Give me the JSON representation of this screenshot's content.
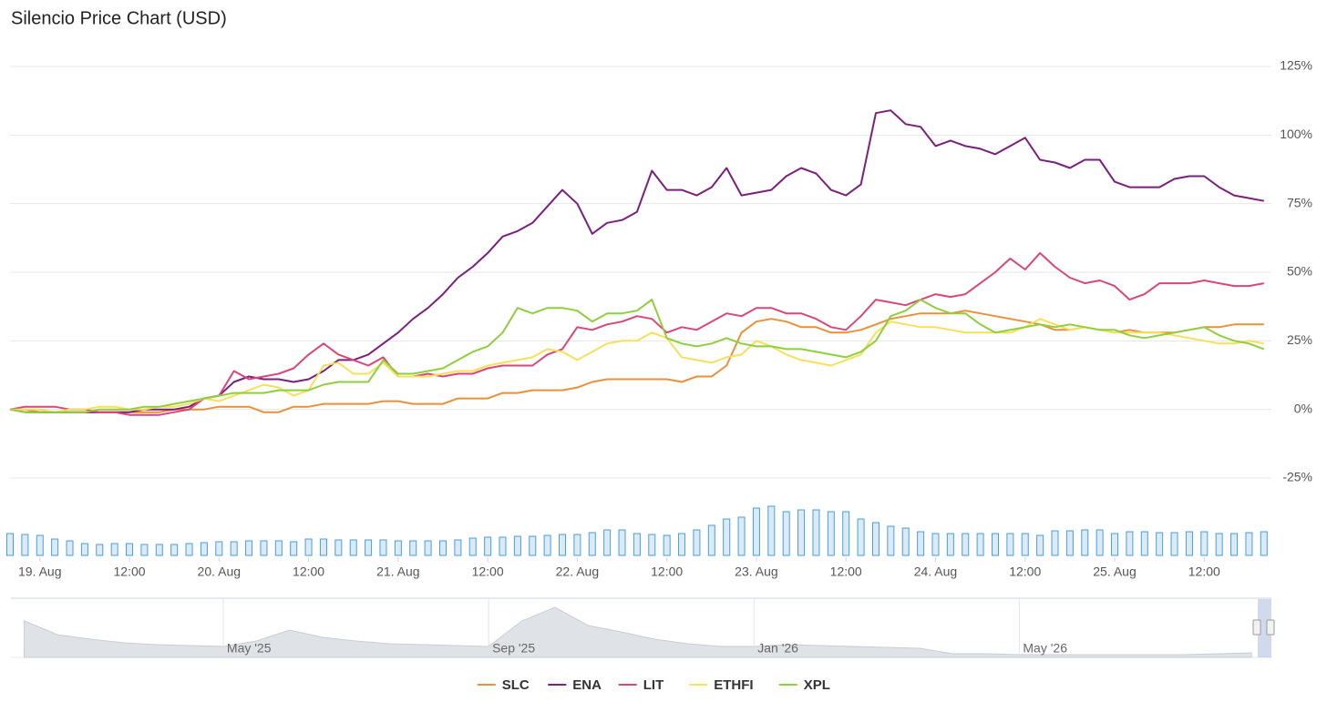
{
  "chart_data": [
    {
      "type": "line",
      "title": "Silencio Price Chart (USD)",
      "x": [
        -4,
        -2,
        0,
        2,
        4,
        6,
        8,
        10,
        12,
        14,
        16,
        18,
        20,
        22,
        24,
        26,
        28,
        30,
        32,
        34,
        36,
        38,
        40,
        42,
        44,
        46,
        48,
        50,
        52,
        54,
        56,
        58,
        60,
        62,
        64,
        66,
        68,
        70,
        72,
        74,
        76,
        78,
        80,
        82,
        84,
        86,
        88,
        90,
        92,
        94,
        96,
        98,
        100,
        102,
        104,
        106,
        108,
        110,
        112,
        114,
        116,
        118,
        120,
        122,
        124,
        126,
        128,
        130,
        132,
        134,
        136,
        138,
        140,
        142,
        144,
        146,
        148,
        150,
        152,
        154,
        156,
        158,
        160,
        162,
        164
      ],
      "xlim": [
        -4,
        165
      ],
      "xticks": [
        {
          "value": 0,
          "label": "19. Aug"
        },
        {
          "value": 12,
          "label": "12:00"
        },
        {
          "value": 24,
          "label": "20. Aug"
        },
        {
          "value": 36,
          "label": "12:00"
        },
        {
          "value": 48,
          "label": "21. Aug"
        },
        {
          "value": 60,
          "label": "12:00"
        },
        {
          "value": 72,
          "label": "22. Aug"
        },
        {
          "value": 84,
          "label": "12:00"
        },
        {
          "value": 96,
          "label": "23. Aug"
        },
        {
          "value": 108,
          "label": "12:00"
        },
        {
          "value": 120,
          "label": "24. Aug"
        },
        {
          "value": 132,
          "label": "12:00"
        },
        {
          "value": 144,
          "label": "25. Aug"
        },
        {
          "value": 156,
          "label": "12:00"
        }
      ],
      "ylim": [
        -25,
        125
      ],
      "yticks": [
        {
          "value": -25,
          "label": "-25%"
        },
        {
          "value": 0,
          "label": "0%"
        },
        {
          "value": 25,
          "label": "25%"
        },
        {
          "value": 50,
          "label": "50%"
        },
        {
          "value": 75,
          "label": "75%"
        },
        {
          "value": 100,
          "label": "100%"
        },
        {
          "value": 125,
          "label": "125%"
        }
      ],
      "grid": true,
      "legend": "bottom",
      "series": [
        {
          "name": "SLC",
          "color": "#e8913a",
          "values": [
            0,
            0,
            -1,
            -1,
            -1,
            -1,
            -1,
            -1,
            -1,
            -1,
            -1,
            0,
            0,
            0,
            1,
            1,
            1,
            -1,
            -1,
            1,
            1,
            2,
            2,
            2,
            2,
            3,
            3,
            2,
            2,
            2,
            4,
            4,
            4,
            6,
            6,
            7,
            7,
            7,
            8,
            10,
            11,
            11,
            11,
            11,
            11,
            10,
            12,
            12,
            16,
            28,
            32,
            33,
            32,
            30,
            30,
            28,
            28,
            29,
            31,
            33,
            34,
            35,
            35,
            35,
            36,
            35,
            34,
            33,
            32,
            31,
            29,
            29,
            30,
            29,
            28,
            29,
            28,
            28,
            28,
            29,
            30,
            30,
            31,
            31,
            31
          ]
        },
        {
          "name": "ENA",
          "color": "#7b1f7e",
          "values": [
            0,
            -1,
            -1,
            -1,
            -1,
            -1,
            -1,
            -1,
            -1,
            0,
            0,
            0,
            1,
            4,
            5,
            10,
            12,
            11,
            11,
            10,
            11,
            14,
            18,
            18,
            20,
            24,
            28,
            33,
            37,
            42,
            48,
            52,
            57,
            63,
            65,
            68,
            74,
            80,
            75,
            64,
            68,
            69,
            72,
            87,
            80,
            80,
            78,
            81,
            88,
            78,
            79,
            80,
            85,
            88,
            86,
            80,
            78,
            82,
            108,
            109,
            104,
            103,
            96,
            98,
            96,
            95,
            93,
            96,
            99,
            91,
            90,
            88,
            91,
            91,
            83,
            81,
            81,
            81,
            84,
            85,
            85,
            81,
            78,
            77,
            76
          ]
        },
        {
          "name": "LIT",
          "color": "#d9467a",
          "values": [
            0,
            1,
            1,
            1,
            0,
            0,
            -1,
            -1,
            -2,
            -2,
            -2,
            -1,
            0,
            4,
            5,
            14,
            11,
            12,
            13,
            15,
            20,
            24,
            20,
            18,
            16,
            19,
            12,
            12,
            13,
            12,
            13,
            13,
            15,
            16,
            16,
            16,
            20,
            22,
            30,
            29,
            31,
            32,
            34,
            33,
            28,
            30,
            29,
            32,
            35,
            34,
            37,
            37,
            35,
            35,
            33,
            30,
            29,
            34,
            40,
            39,
            38,
            40,
            42,
            41,
            42,
            46,
            50,
            55,
            51,
            57,
            52,
            48,
            46,
            47,
            45,
            40,
            42,
            46,
            46,
            46,
            47,
            46,
            45,
            45,
            46
          ]
        },
        {
          "name": "ETHFI",
          "color": "#f5e05a",
          "values": [
            0,
            0,
            0,
            -1,
            0,
            0,
            1,
            1,
            0,
            0,
            1,
            1,
            2,
            4,
            3,
            5,
            7,
            9,
            8,
            5,
            7,
            16,
            17,
            13,
            13,
            17,
            12,
            12,
            12,
            13,
            14,
            14,
            16,
            17,
            18,
            19,
            22,
            21,
            18,
            21,
            24,
            25,
            25,
            28,
            26,
            19,
            18,
            17,
            19,
            20,
            25,
            23,
            20,
            18,
            17,
            16,
            18,
            20,
            28,
            32,
            31,
            30,
            30,
            29,
            28,
            28,
            28,
            28,
            30,
            33,
            31,
            29,
            30,
            29,
            28,
            28,
            28,
            28,
            27,
            26,
            25,
            24,
            24,
            25,
            24
          ]
        },
        {
          "name": "XPL",
          "color": "#8fce3f",
          "values": [
            0,
            -1,
            -1,
            -1,
            -1,
            -1,
            0,
            0,
            0,
            1,
            1,
            2,
            3,
            4,
            5,
            6,
            6,
            6,
            7,
            7,
            7,
            9,
            10,
            10,
            10,
            18,
            13,
            13,
            14,
            15,
            18,
            21,
            23,
            28,
            37,
            35,
            37,
            37,
            36,
            32,
            35,
            35,
            36,
            40,
            26,
            24,
            23,
            24,
            26,
            24,
            23,
            23,
            22,
            22,
            21,
            20,
            19,
            21,
            25,
            34,
            36,
            40,
            37,
            35,
            35,
            31,
            28,
            29,
            30,
            31,
            30,
            31,
            30,
            29,
            29,
            27,
            26,
            27,
            28,
            29,
            30,
            27,
            25,
            24,
            22
          ]
        }
      ]
    },
    {
      "type": "bar",
      "color": "#4a9ede",
      "x": [
        -4,
        -2,
        0,
        2,
        4,
        6,
        8,
        10,
        12,
        14,
        16,
        18,
        20,
        22,
        24,
        26,
        28,
        30,
        32,
        34,
        36,
        38,
        40,
        42,
        44,
        46,
        48,
        50,
        52,
        54,
        56,
        58,
        60,
        62,
        64,
        66,
        68,
        70,
        72,
        74,
        76,
        78,
        80,
        82,
        84,
        86,
        88,
        90,
        92,
        94,
        96,
        98,
        100,
        102,
        104,
        106,
        108,
        110,
        112,
        114,
        116,
        118,
        120,
        122,
        124,
        126,
        128,
        130,
        132,
        134,
        136,
        138,
        140,
        142,
        144,
        146,
        148,
        150,
        152,
        154,
        156,
        158,
        160,
        162,
        164
      ],
      "xlim": [
        -4,
        165
      ],
      "ylim": [
        0,
        60
      ],
      "values": [
        24,
        23,
        22,
        18,
        16,
        13,
        12,
        13,
        13,
        12,
        12,
        12,
        13,
        14,
        15,
        15,
        16,
        16,
        16,
        15,
        18,
        18,
        17,
        17,
        17,
        17,
        16,
        16,
        16,
        16,
        17,
        19,
        20,
        20,
        21,
        21,
        22,
        23,
        23,
        25,
        28,
        28,
        24,
        23,
        22,
        24,
        28,
        33,
        40,
        42,
        52,
        54,
        48,
        50,
        50,
        48,
        48,
        40,
        36,
        32,
        30,
        26,
        24,
        24,
        24,
        24,
        24,
        24,
        24,
        22,
        27,
        27,
        28,
        28,
        24,
        26,
        26,
        25,
        25,
        26,
        26,
        24,
        24,
        25,
        26
      ]
    },
    {
      "type": "area",
      "color": "#dfe3e8",
      "x": [
        1,
        1.5,
        2,
        2.5,
        3,
        3.5,
        4,
        4.5,
        5,
        5.5,
        6,
        6.5,
        7,
        7.5,
        8,
        8.5,
        9,
        9.5,
        10,
        10.5,
        11,
        11.5,
        12,
        12.5,
        13,
        13.5,
        14,
        14.5,
        15,
        15.5,
        16,
        16.5,
        17,
        17.5,
        18,
        18.5,
        19,
        19.5
      ],
      "xlim": [
        0.8,
        19.8
      ],
      "ylim": [
        0,
        64
      ],
      "xticks": [
        {
          "value": 4,
          "label": "May '25"
        },
        {
          "value": 8,
          "label": "Sep '25"
        },
        {
          "value": 12,
          "label": "Jan '26"
        },
        {
          "value": 16,
          "label": "May '26"
        }
      ],
      "values": [
        40,
        25,
        20,
        16,
        14,
        13,
        12,
        18,
        30,
        22,
        18,
        15,
        14,
        13,
        12,
        40,
        55,
        35,
        28,
        20,
        15,
        12,
        12,
        14,
        13,
        12,
        11,
        10,
        4,
        4,
        3,
        3,
        3,
        3,
        3,
        3,
        4,
        5
      ]
    }
  ]
}
